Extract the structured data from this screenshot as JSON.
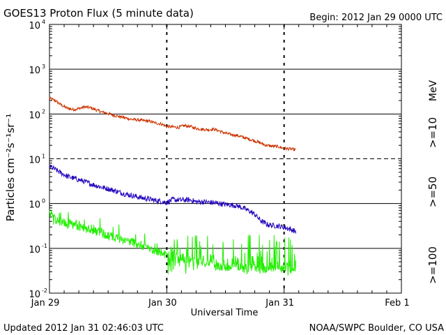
{
  "chart_data": {
    "type": "line",
    "title": "GOES13 Proton Flux (5 minute data)",
    "begin_label": "Begin: 2012 Jan 29 0000 UTC",
    "ylabel": "Particles cm⁻²s⁻¹sr⁻¹",
    "xlabel": "Universal Time",
    "updated_label": "Updated 2012 Jan 31 02:46:03 UTC",
    "credit_label": "NOAA/SWPC Boulder, CO USA",
    "x_unit": "days since 2012 Jan 29 0000 UTC",
    "xlim": [
      0,
      3
    ],
    "ylim_log10": [
      -2,
      4
    ],
    "y_ticks": [
      {
        "exp": -2,
        "base": "10",
        "sup": "-2"
      },
      {
        "exp": -1,
        "base": "10",
        "sup": "-1"
      },
      {
        "exp": 0,
        "base": "10",
        "sup": "0"
      },
      {
        "exp": 1,
        "base": "10",
        "sup": "1"
      },
      {
        "exp": 2,
        "base": "10",
        "sup": "2"
      },
      {
        "exp": 3,
        "base": "10",
        "sup": "3"
      },
      {
        "exp": 4,
        "base": "10",
        "sup": "4"
      }
    ],
    "x_ticks": [
      {
        "x": 0,
        "label": "Jan 29"
      },
      {
        "x": 1,
        "label": "Jan 30"
      },
      {
        "x": 2,
        "label": "Jan 31"
      },
      {
        "x": 3,
        "label": "Feb 1"
      }
    ],
    "solid_gridlines": [
      -1,
      0,
      2,
      3
    ],
    "dashed_gridlines": [
      1
    ],
    "energy_unit_label": "MeV",
    "colors": {
      "frame": "#000000",
      "p10": "#cc3300",
      "p50": "#2200bb",
      "p100": "#22ee00"
    },
    "series": [
      {
        "key": "p10",
        "name": ">=10",
        "color": "#cc3300",
        "x": [
          0,
          0.05,
          0.1,
          0.15,
          0.2,
          0.25,
          0.3,
          0.35,
          0.4,
          0.45,
          0.5,
          0.55,
          0.6,
          0.65,
          0.7,
          0.75,
          0.8,
          0.85,
          0.9,
          0.95,
          1.0,
          1.05,
          1.1,
          1.15,
          1.2,
          1.25,
          1.3,
          1.35,
          1.4,
          1.45,
          1.5,
          1.55,
          1.6,
          1.65,
          1.7,
          1.75,
          1.8,
          1.85,
          1.9,
          1.95,
          2.0,
          2.05,
          2.1
        ],
        "log10_values": [
          2.35,
          2.3,
          2.2,
          2.13,
          2.1,
          2.12,
          2.16,
          2.14,
          2.09,
          2.04,
          2.01,
          1.97,
          1.94,
          1.91,
          1.88,
          1.87,
          1.85,
          1.84,
          1.8,
          1.78,
          1.72,
          1.71,
          1.7,
          1.74,
          1.72,
          1.68,
          1.66,
          1.65,
          1.66,
          1.62,
          1.57,
          1.54,
          1.52,
          1.48,
          1.44,
          1.4,
          1.35,
          1.3,
          1.28,
          1.27,
          1.23,
          1.22,
          1.2
        ],
        "jitter": 0.035,
        "spike_prob": 0
      },
      {
        "key": "p50",
        "name": ">=50",
        "color": "#2200bb",
        "x": [
          0,
          0.05,
          0.1,
          0.15,
          0.2,
          0.25,
          0.3,
          0.35,
          0.4,
          0.45,
          0.5,
          0.55,
          0.6,
          0.65,
          0.7,
          0.75,
          0.8,
          0.85,
          0.9,
          0.95,
          1.0,
          1.05,
          1.1,
          1.15,
          1.2,
          1.25,
          1.3,
          1.35,
          1.4,
          1.45,
          1.5,
          1.55,
          1.6,
          1.65,
          1.7,
          1.75,
          1.8,
          1.85,
          1.9,
          1.95,
          2.0,
          2.05,
          2.1
        ],
        "log10_values": [
          0.83,
          0.76,
          0.68,
          0.61,
          0.57,
          0.53,
          0.49,
          0.44,
          0.4,
          0.36,
          0.33,
          0.29,
          0.25,
          0.21,
          0.18,
          0.15,
          0.12,
          0.1,
          0.07,
          0.05,
          0.02,
          0.09,
          0.08,
          0.08,
          0.08,
          0.04,
          0.04,
          0.03,
          0.02,
          0.0,
          -0.02,
          -0.03,
          -0.05,
          -0.1,
          -0.16,
          -0.24,
          -0.38,
          -0.46,
          -0.49,
          -0.5,
          -0.53,
          -0.57,
          -0.62
        ],
        "jitter": 0.06,
        "spike_prob": 0
      },
      {
        "key": "p100",
        "name": ">=100",
        "color": "#22ee00",
        "x": [
          0,
          0.05,
          0.1,
          0.15,
          0.2,
          0.25,
          0.3,
          0.35,
          0.4,
          0.45,
          0.5,
          0.55,
          0.6,
          0.65,
          0.7,
          0.75,
          0.8,
          0.85,
          0.9,
          0.95,
          1.0,
          1.05,
          1.1,
          1.15,
          1.2,
          1.25,
          1.3,
          1.35,
          1.4,
          1.45,
          1.5,
          1.55,
          1.6,
          1.65,
          1.7,
          1.75,
          1.8,
          1.85,
          1.9,
          1.95,
          2.0,
          2.05,
          2.1
        ],
        "log10_values": [
          -0.24,
          -0.35,
          -0.42,
          -0.45,
          -0.47,
          -0.52,
          -0.55,
          -0.58,
          -0.62,
          -0.66,
          -0.72,
          -0.75,
          -0.79,
          -0.82,
          -0.85,
          -0.9,
          -0.95,
          -1.0,
          -1.05,
          -1.1,
          -1.15,
          -1.2,
          -1.22,
          -1.24,
          -1.28,
          -1.3,
          -1.32,
          -1.36,
          -1.38,
          -1.4,
          -1.42,
          -1.42,
          -1.42,
          -1.45,
          -1.45,
          -1.45,
          -1.45,
          -1.45,
          -1.45,
          -1.45,
          -1.45,
          -1.45,
          -1.45
        ],
        "jitter": 0.1,
        "spike_prob": 0.35,
        "floor_log10": -1.58
      }
    ]
  }
}
